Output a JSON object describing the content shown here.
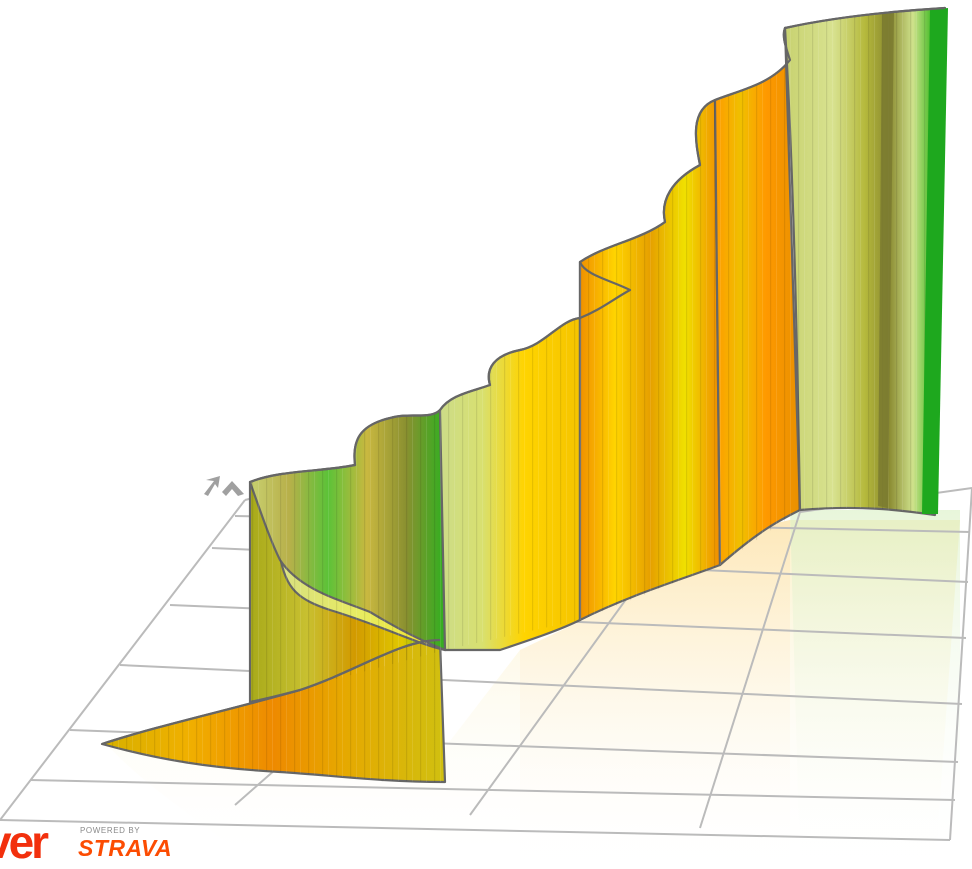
{
  "brand": {
    "logo_text": "ver",
    "powered_by": "POWERED BY",
    "strava": "STRAVA",
    "logo_color": "#f2300d",
    "strava_color": "#fc4c02"
  },
  "colors": {
    "grid": "#bbbbbb",
    "outline": "#666666",
    "gradient_scale": [
      "#1ea81e",
      "#5cc238",
      "#c9e27e",
      "#b5b93c",
      "#ffd400",
      "#f5b400",
      "#ff9900"
    ]
  },
  "icons": [
    "direction-arrow-icon"
  ]
}
